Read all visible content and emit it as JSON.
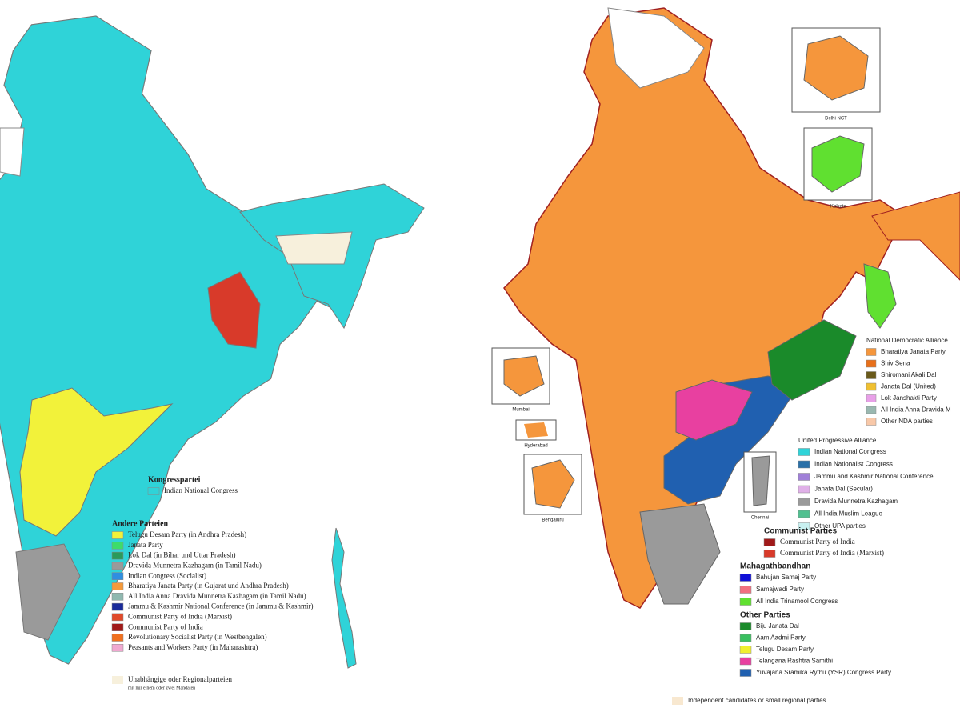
{
  "left_map": {
    "legend": [
      {
        "title": "Kongresspartei",
        "items": [
          {
            "label": "Indian National Congress",
            "color": "#2fd3d8"
          }
        ]
      },
      {
        "title": "Andere Parteien",
        "items": [
          {
            "label": "Telugu Desam Party (in Andhra Pradesh)",
            "color": "#f2f23a"
          },
          {
            "label": "Janata Party",
            "color": "#3ddc6a"
          },
          {
            "label": "Lok Dal (in Bihar und Uttar Pradesh)",
            "color": "#2a9a5a"
          },
          {
            "label": "Dravida Munnetra Kazhagam (in Tamil Nadu)",
            "color": "#9a9a9a"
          },
          {
            "label": "Indian Congress (Socialist)",
            "color": "#2f8fe0"
          },
          {
            "label": "Bharatiya Janata Party (in Gujarat und Andhra Pradesh)",
            "color": "#f59a3a"
          },
          {
            "label": "All India Anna Dravida Munnetra Kazhagam (in Tamil Nadu)",
            "color": "#8fb8b0"
          },
          {
            "label": "Jammu & Kashmir National Conference (in Jammu & Kashmir)",
            "color": "#1a2a9a"
          },
          {
            "label": "Communist Party of India (Marxist)",
            "color": "#e04a2a"
          },
          {
            "label": "Communist Party of India",
            "color": "#a01a1a"
          },
          {
            "label": "Revolutionary Socialist Party (in Westbengalen)",
            "color": "#f07020"
          },
          {
            "label": "Peasants and Workers Party (in Maharashtra)",
            "color": "#f0a8d0"
          }
        ]
      }
    ],
    "independent": {
      "label": "Unabhängige oder Regionalparteien",
      "sublabel": "mit nur einem oder zwei Mandaten",
      "color": "#f7f0dc"
    }
  },
  "right_map": {
    "legend": [
      {
        "title": "National Democratic Alliance",
        "items": [
          {
            "label": "Bharatiya Janata Party",
            "color": "#f5963c"
          },
          {
            "label": "Shiv Sena",
            "color": "#e8701a"
          },
          {
            "label": "Shiromani Akali Dal",
            "color": "#6a5a1a"
          },
          {
            "label": "Janata Dal (United)",
            "color": "#f0c030"
          },
          {
            "label": "Lok Janshakti Party",
            "color": "#e8a0e8"
          },
          {
            "label": "All India Anna Dravida M",
            "color": "#9ab8b0"
          },
          {
            "label": "Other NDA parties",
            "color": "#f8c8a8"
          }
        ]
      },
      {
        "title": "United Progressive Alliance",
        "items": [
          {
            "label": "Indian National Congress",
            "color": "#2fd3d8"
          },
          {
            "label": "Indian Nationalist Congress",
            "color": "#2a70a8"
          },
          {
            "label": "Jammu and Kashmir National Conference",
            "color": "#a080d8"
          },
          {
            "label": "Janata Dal (Secular)",
            "color": "#e0b0e8"
          },
          {
            "label": "Dravida Munnetra Kazhagam",
            "color": "#9a9a9a"
          },
          {
            "label": "All India Muslim League",
            "color": "#50c090"
          },
          {
            "label": "Other UPA parties",
            "color": "#c8f0f0"
          }
        ]
      },
      {
        "title": "Communist Parties",
        "items": [
          {
            "label": "Communist Party of India",
            "color": "#a01a1a"
          },
          {
            "label": "Communist Party of India (Marxist)",
            "color": "#d83a2a"
          }
        ]
      },
      {
        "title": "Mahagathbandhan",
        "items": [
          {
            "label": "Bahujan Samaj Party",
            "color": "#1010d8"
          },
          {
            "label": "Samajwadi Party",
            "color": "#f07080"
          },
          {
            "label": "All India Trinamool Congress",
            "color": "#60e030"
          }
        ]
      },
      {
        "title": "Other Parties",
        "items": [
          {
            "label": "Biju Janata Dal",
            "color": "#1a8a2a"
          },
          {
            "label": "Aam Aadmi Party",
            "color": "#3ac060"
          },
          {
            "label": "Telugu Desam Party",
            "color": "#f0f030"
          },
          {
            "label": "Telangana Rashtra Samithi",
            "color": "#e840a0"
          },
          {
            "label": "Yuvajana Sramika Rythu (YSR) Congress Party",
            "color": "#2060b0"
          }
        ]
      }
    ],
    "independent": {
      "label": "Independent candidates or small regional parties",
      "color": "#f8e8d0"
    },
    "insets": [
      "Delhi NCT",
      "Kolkata",
      "Mumbai",
      "Hyderabad",
      "Bengaluru",
      "Chennai"
    ]
  }
}
